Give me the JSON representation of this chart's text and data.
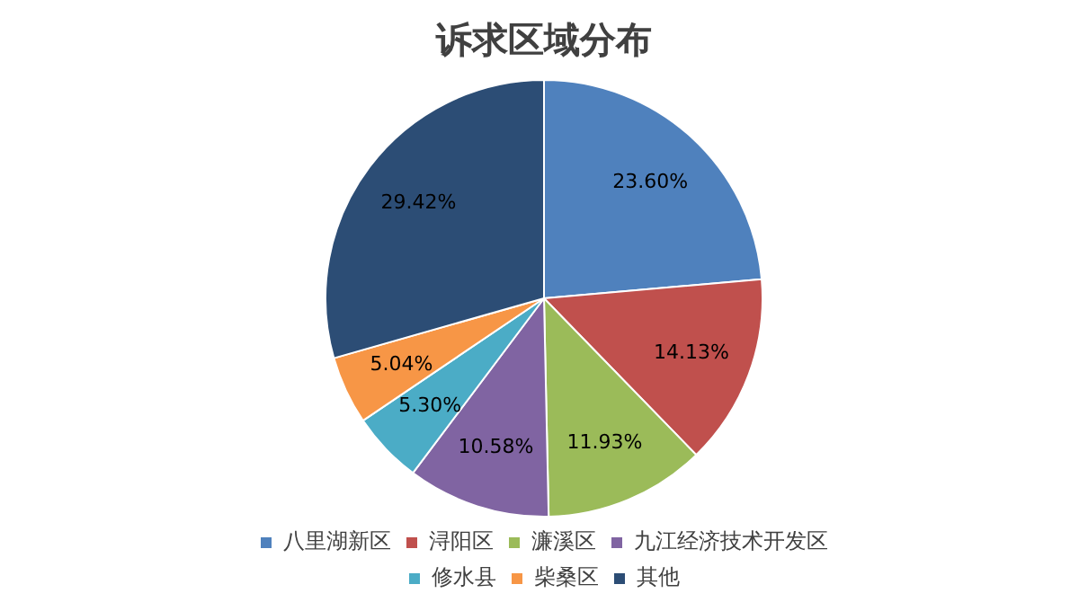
{
  "chart_data": {
    "type": "pie",
    "title": "诉求区域分布",
    "categories": [
      "八里湖新区",
      "浔阳区",
      "濂溪区",
      "九江经济技术开发区",
      "修水县",
      "柴桑区",
      "其他"
    ],
    "values": [
      23.6,
      14.13,
      11.93,
      10.58,
      5.3,
      5.04,
      29.42
    ],
    "value_labels": [
      "23.60%",
      "14.13%",
      "11.93%",
      "10.58%",
      "5.30%",
      "5.04%",
      "29.42%"
    ],
    "colors": [
      "#4f81bd",
      "#c0504d",
      "#9bbb59",
      "#8064a2",
      "#4bacc6",
      "#f79646",
      "#2c4d75"
    ],
    "legend": "bottom"
  }
}
